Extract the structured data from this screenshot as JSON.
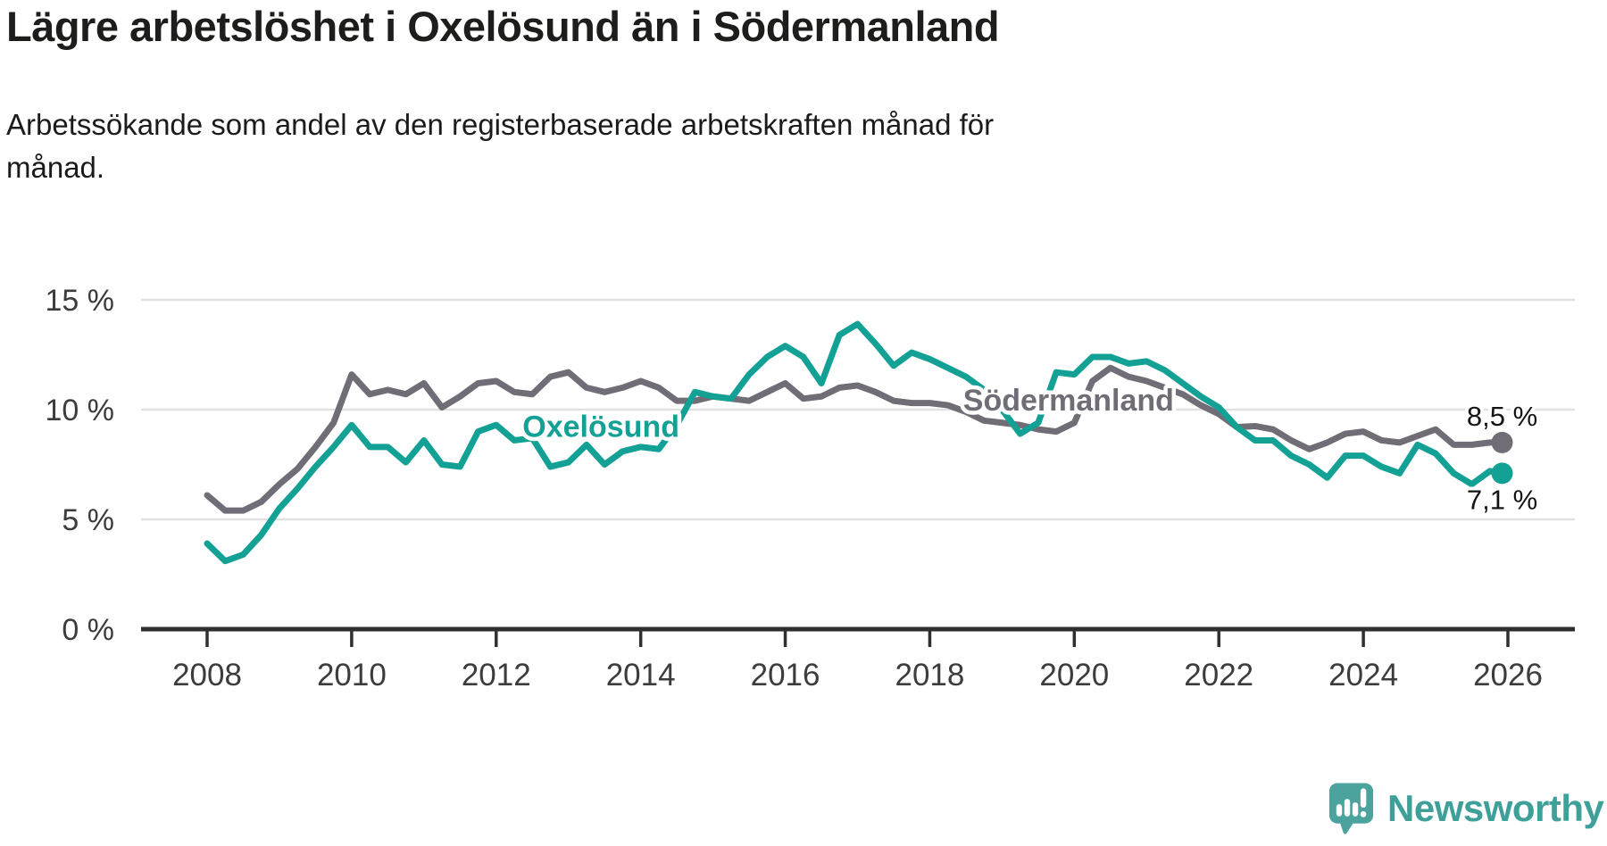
{
  "chart_data": {
    "type": "line",
    "title": "Lägre arbetslöshet i Oxelösund än i Södermanland",
    "subtitle_line1": "Arbetssökande som andel av den registerbaserade arbetskraften månad för",
    "subtitle_line2": "månad.",
    "unit": "%",
    "grid": "horizontal",
    "x_axis": {
      "ticks": [
        2008,
        2010,
        2012,
        2014,
        2016,
        2018,
        2020,
        2022,
        2024,
        2026
      ],
      "min": 2008,
      "max": 2026.9
    },
    "y_axis": {
      "ticks": [
        0,
        5,
        10,
        15
      ],
      "tick_labels": [
        "0 %",
        "5 %",
        "10 %",
        "15 %"
      ],
      "min": 0,
      "max": 15.5
    },
    "x": [
      2008,
      2008.25,
      2008.5,
      2008.75,
      2009,
      2009.25,
      2009.5,
      2009.75,
      2010,
      2010.25,
      2010.5,
      2010.75,
      2011,
      2011.25,
      2011.5,
      2011.75,
      2012,
      2012.25,
      2012.5,
      2012.75,
      2013,
      2013.25,
      2013.5,
      2013.75,
      2014,
      2014.25,
      2014.5,
      2014.75,
      2015,
      2015.25,
      2015.5,
      2015.75,
      2016,
      2016.25,
      2016.5,
      2016.75,
      2017,
      2017.25,
      2017.5,
      2017.75,
      2018,
      2018.25,
      2018.5,
      2018.75,
      2019,
      2019.25,
      2019.5,
      2019.75,
      2020,
      2020.25,
      2020.5,
      2020.75,
      2021,
      2021.25,
      2021.5,
      2021.75,
      2022,
      2022.25,
      2022.5,
      2022.75,
      2023,
      2023.25,
      2023.5,
      2023.75,
      2024,
      2024.25,
      2024.5,
      2024.75,
      2025,
      2025.25,
      2025.5,
      2025.75,
      2025.92
    ],
    "series": [
      {
        "name": "Södermanland",
        "color": "#716D76",
        "end_label": "8,5 %",
        "end_value": 8.5,
        "label_anchor": {
          "x": 2019.92,
          "y": 10.45
        },
        "values": [
          6.1,
          5.4,
          5.4,
          5.8,
          6.6,
          7.3,
          8.3,
          9.4,
          11.6,
          10.7,
          10.9,
          10.7,
          11.2,
          10.1,
          10.6,
          11.2,
          11.3,
          10.8,
          10.7,
          11.5,
          11.7,
          11.0,
          10.8,
          11.0,
          11.3,
          11.0,
          10.4,
          10.4,
          10.6,
          10.5,
          10.4,
          10.8,
          11.2,
          10.5,
          10.6,
          11.0,
          11.1,
          10.8,
          10.4,
          10.3,
          10.3,
          10.2,
          9.9,
          9.5,
          9.4,
          9.3,
          9.1,
          9.0,
          9.4,
          11.3,
          11.9,
          11.5,
          11.3,
          11.0,
          10.7,
          10.2,
          9.8,
          9.2,
          9.25,
          9.1,
          8.6,
          8.2,
          8.5,
          8.9,
          9.0,
          8.6,
          8.5,
          8.8,
          9.1,
          8.4,
          8.4,
          8.5,
          8.5
        ]
      },
      {
        "name": "Oxelösund",
        "color": "#14A195",
        "end_label": "7,1 %",
        "end_value": 7.1,
        "label_anchor": {
          "x": 2013.45,
          "y": 9.25
        },
        "values": [
          3.9,
          3.1,
          3.4,
          4.3,
          5.5,
          6.4,
          7.4,
          8.3,
          9.3,
          8.3,
          8.3,
          7.6,
          8.6,
          7.5,
          7.4,
          9.0,
          9.3,
          8.6,
          8.7,
          7.4,
          7.6,
          8.4,
          7.5,
          8.1,
          8.3,
          8.2,
          9.3,
          10.8,
          10.6,
          10.5,
          11.6,
          12.4,
          12.9,
          12.4,
          11.2,
          13.4,
          13.9,
          13.0,
          12.0,
          12.6,
          12.3,
          11.9,
          11.5,
          10.9,
          10.0,
          8.9,
          9.4,
          11.7,
          11.6,
          12.4,
          12.4,
          12.1,
          12.2,
          11.8,
          11.2,
          10.6,
          10.1,
          9.2,
          8.6,
          8.6,
          7.9,
          7.5,
          6.9,
          7.9,
          7.9,
          7.4,
          7.1,
          8.4,
          8.0,
          7.1,
          6.6,
          7.2,
          7.1
        ]
      }
    ],
    "colors": {
      "axis": "#2f2f2f",
      "gridline": "#e1e1e1",
      "tick_label": "#3c3c3c",
      "value_label": "#141414"
    }
  },
  "footer": {
    "brand": "Newsworthy",
    "brand_color": "#3EA099",
    "logo_icon": "newsworthy-speech-bubble-bar-chart-icon"
  }
}
